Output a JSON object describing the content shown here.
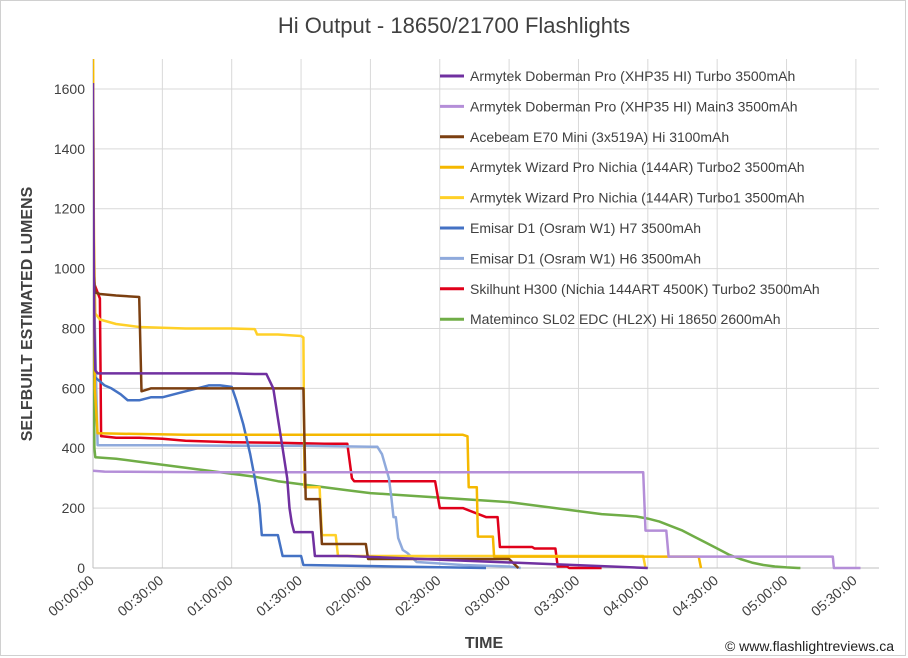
{
  "chart_data": {
    "type": "line",
    "title": "Hi Output - 18650/21700 Flashlights",
    "xlabel": "TIME",
    "ylabel": "SELFBUILT ESTIMATED LUMENS",
    "xlim": [
      0,
      340
    ],
    "ylim": [
      0,
      1700
    ],
    "x_unit": "minutes",
    "y_ticks": [
      0,
      200,
      400,
      600,
      800,
      1000,
      1200,
      1400,
      1600
    ],
    "x_ticks": [
      {
        "v": 0,
        "label": "00:00:00"
      },
      {
        "v": 30,
        "label": "00:30:00"
      },
      {
        "v": 60,
        "label": "01:00:00"
      },
      {
        "v": 90,
        "label": "01:30:00"
      },
      {
        "v": 120,
        "label": "02:00:00"
      },
      {
        "v": 150,
        "label": "02:30:00"
      },
      {
        "v": 180,
        "label": "03:00:00"
      },
      {
        "v": 210,
        "label": "03:30:00"
      },
      {
        "v": 240,
        "label": "04:00:00"
      },
      {
        "v": 270,
        "label": "04:30:00"
      },
      {
        "v": 300,
        "label": "05:00:00"
      },
      {
        "v": 330,
        "label": "05:30:00"
      }
    ],
    "grid": true,
    "legend_position": "top-right",
    "copyright": "© www.flashlightreviews.ca",
    "series": [
      {
        "name": "Armytek Doberman Pro (XHP35 HI) Turbo 3500mAh",
        "color": "#7030a0",
        "x": [
          0,
          0.3,
          0.6,
          1,
          2,
          3,
          5,
          20,
          40,
          60,
          70,
          75,
          78,
          80,
          82,
          84,
          85,
          86,
          87,
          88,
          95,
          96,
          110,
          240
        ],
        "y": [
          1620,
          1100,
          800,
          660,
          650,
          650,
          650,
          650,
          650,
          650,
          648,
          648,
          600,
          500,
          400,
          300,
          200,
          150,
          120,
          120,
          120,
          40,
          40,
          0
        ]
      },
      {
        "name": "Armytek Doberman Pro (XHP35 HI) Main3 3500mAh",
        "color": "#b48ed8",
        "x": [
          0,
          5,
          50,
          100,
          150,
          200,
          238,
          239,
          248,
          249,
          320,
          320.5,
          332
        ],
        "y": [
          325,
          322,
          320,
          320,
          320,
          320,
          320,
          125,
          125,
          38,
          38,
          0,
          0
        ]
      },
      {
        "name": "Acebeam E70 Mini (3x519A) Hi 3100mAh",
        "color": "#7b3f10",
        "x": [
          0,
          0.5,
          1,
          3,
          10,
          20,
          21,
          25,
          40,
          60,
          75,
          77,
          91,
          92,
          98,
          99,
          106,
          107,
          118,
          119,
          130,
          131,
          180,
          184
        ],
        "y": [
          1000,
          960,
          920,
          915,
          910,
          905,
          590,
          600,
          600,
          600,
          600,
          600,
          600,
          230,
          230,
          80,
          80,
          80,
          80,
          30,
          30,
          30,
          30,
          0
        ]
      },
      {
        "name": "Armytek Wizard Pro Nichia (144AR) Turbo2 3500mAh",
        "color": "#f5b800",
        "x": [
          0,
          0.4,
          0.8,
          2,
          40,
          80,
          120,
          160,
          162,
          162.5,
          166,
          166.5,
          173,
          173.5,
          220,
          240,
          260,
          262,
          263
        ],
        "y": [
          1700,
          1100,
          600,
          450,
          445,
          445,
          445,
          445,
          440,
          270,
          270,
          105,
          105,
          38,
          38,
          38,
          38,
          38,
          0
        ]
      },
      {
        "name": "Armytek Wizard Pro Nichia (144AR) Turbo1 3500mAh",
        "color": "#ffd028",
        "x": [
          0,
          0.4,
          1,
          3,
          10,
          20,
          40,
          60,
          70,
          71,
          80,
          90,
          91,
          91.5,
          98,
          99,
          105,
          106,
          140,
          200,
          238,
          239
        ],
        "y": [
          1700,
          1100,
          850,
          830,
          815,
          805,
          800,
          800,
          798,
          780,
          780,
          775,
          770,
          270,
          270,
          110,
          110,
          40,
          40,
          40,
          40,
          0
        ]
      },
      {
        "name": "Emisar D1 (Osram W1) H7 3500mAh",
        "color": "#4472c4",
        "x": [
          0,
          0.5,
          2,
          5,
          8,
          12,
          15,
          20,
          25,
          30,
          35,
          40,
          45,
          50,
          55,
          60,
          62,
          65,
          68,
          70,
          72,
          73,
          75,
          80,
          82,
          83,
          90,
          91,
          130,
          170
        ],
        "y": [
          640,
          640,
          630,
          610,
          600,
          580,
          560,
          560,
          570,
          570,
          580,
          590,
          600,
          610,
          610,
          605,
          560,
          480,
          380,
          300,
          210,
          110,
          110,
          110,
          40,
          40,
          40,
          10,
          5,
          0
        ]
      },
      {
        "name": "Emisar D1 (Osram W1) H6 3500mAh",
        "color": "#8faadc",
        "x": [
          0,
          0.5,
          2,
          10,
          30,
          60,
          90,
          120,
          123,
          125,
          128,
          129,
          130,
          131,
          132,
          134,
          136,
          140,
          160,
          180,
          185
        ],
        "y": [
          1400,
          900,
          410,
          410,
          410,
          408,
          408,
          405,
          405,
          380,
          300,
          240,
          170,
          170,
          100,
          60,
          50,
          20,
          10,
          5,
          0
        ]
      },
      {
        "name": "Skilhunt H300 (Nichia 144ART 4500K) Turbo2 3500mAh",
        "color": "#e0001a",
        "x": [
          0,
          0.5,
          1,
          2,
          3,
          3.5,
          4,
          10,
          20,
          30,
          40,
          60,
          80,
          100,
          110,
          112,
          113,
          140,
          148,
          150,
          160,
          170,
          175,
          176,
          190,
          191,
          200,
          201,
          205,
          206,
          220
        ],
        "y": [
          950,
          950,
          940,
          920,
          900,
          440,
          440,
          435,
          435,
          432,
          425,
          420,
          418,
          415,
          415,
          300,
          290,
          290,
          290,
          200,
          200,
          170,
          170,
          70,
          70,
          65,
          65,
          5,
          5,
          0,
          0
        ]
      },
      {
        "name": "Mateminco SL02 EDC (HL2X) Hi 18650 2600mAh",
        "color": "#70ad47",
        "x": [
          0,
          0.3,
          0.6,
          1,
          10,
          20,
          30,
          40,
          50,
          60,
          70,
          80,
          90,
          100,
          110,
          120,
          130,
          140,
          150,
          160,
          170,
          180,
          190,
          200,
          210,
          220,
          230,
          235,
          240,
          245,
          250,
          255,
          260,
          265,
          270,
          275,
          280,
          285,
          290,
          295,
          300,
          305,
          306
        ],
        "y": [
          1450,
          800,
          400,
          370,
          365,
          355,
          345,
          335,
          325,
          315,
          305,
          290,
          280,
          270,
          260,
          250,
          245,
          240,
          235,
          230,
          225,
          220,
          210,
          200,
          190,
          180,
          175,
          172,
          165,
          155,
          140,
          125,
          105,
          85,
          65,
          45,
          30,
          18,
          10,
          5,
          2,
          0,
          0
        ]
      }
    ]
  }
}
